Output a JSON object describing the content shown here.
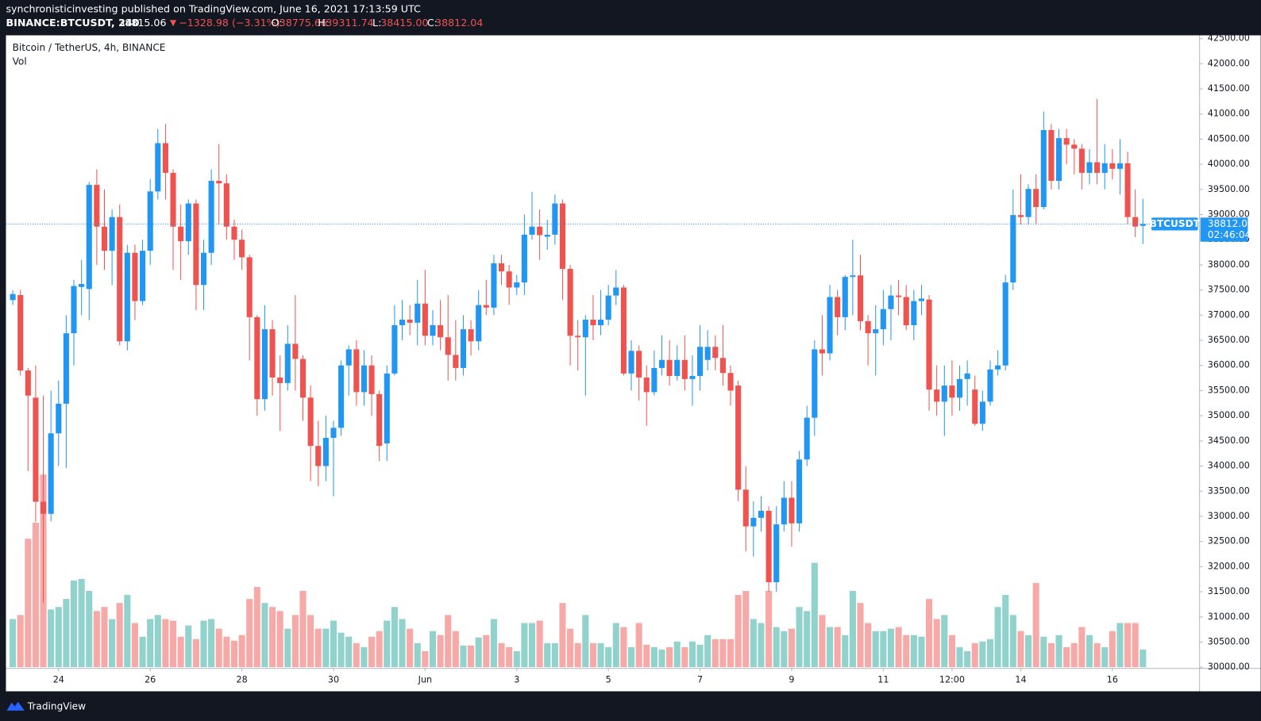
{
  "header": {
    "publisher": "synchronisticinvesting published on TradingView.com, June 16, 2021 17:13:59 UTC",
    "symbol": "BINANCE:BTCUSDT, 240",
    "price": "38815.06",
    "change": "−1328.98 (−3.31%)",
    "ohlc": [
      {
        "label": "O:",
        "value": "38775.66"
      },
      {
        "label": "H:",
        "value": "39311.74"
      },
      {
        "label": "L:",
        "value": "38415.00"
      },
      {
        "label": "C:",
        "value": "38812.04"
      }
    ]
  },
  "footer": {
    "brand": "TradingView"
  },
  "chart_data": {
    "type": "candlestick",
    "title": "Bitcoin / TetherUS, 4h, BINANCE",
    "volume_label": "Vol",
    "symbol_tag": "BTCUSDT",
    "countdown": "02:46:04",
    "up_color": "#2196f3",
    "down_color": "#ef5350",
    "up_volume_color": "#92d2cc",
    "down_volume_color": "#f7a9a7",
    "grid": false,
    "categories": [
      null,
      null,
      null,
      null,
      null,
      null,
      "24",
      null,
      null,
      null,
      null,
      null,
      null,
      null,
      null,
      null,
      null,
      null,
      "26",
      null,
      null,
      null,
      null,
      null,
      null,
      null,
      null,
      null,
      null,
      null,
      "28",
      null,
      null,
      null,
      null,
      null,
      null,
      null,
      null,
      null,
      null,
      null,
      "30",
      null,
      null,
      null,
      null,
      null,
      null,
      null,
      null,
      null,
      null,
      null,
      "Jun",
      null,
      null,
      null,
      null,
      null,
      null,
      null,
      null,
      null,
      null,
      null,
      "3",
      null,
      null,
      null,
      null,
      null,
      null,
      null,
      null,
      null,
      null,
      null,
      "5",
      null,
      null,
      null,
      null,
      null,
      null,
      null,
      null,
      null,
      null,
      null,
      "7",
      null,
      null,
      null,
      null,
      null,
      null,
      null,
      null,
      null,
      null,
      null,
      "9",
      null,
      null,
      null,
      null,
      null,
      null,
      null,
      null,
      null,
      null,
      null,
      "11",
      null,
      null,
      null,
      null,
      null,
      null,
      null,
      null,
      "12:00",
      null,
      null,
      null,
      null,
      null,
      null,
      null,
      null,
      "14",
      null,
      null,
      null,
      null,
      null,
      null,
      null,
      null,
      null,
      null,
      null,
      "16",
      null,
      null,
      null,
      null
    ],
    "open": [
      37300,
      37400,
      35900,
      35360,
      33290,
      33050,
      34650,
      35240,
      36640,
      37560,
      37520,
      39590,
      38760,
      38280,
      38950,
      36480,
      38240,
      37280,
      38280,
      39460,
      40420,
      39830,
      38760,
      38470,
      39220,
      37600,
      38240,
      39670,
      39620,
      38760,
      38500,
      38150,
      36960,
      35330,
      36720,
      35760,
      35650,
      36430,
      36130,
      35360,
      34400,
      34000,
      34560,
      34760,
      36000,
      36320,
      35470,
      36000,
      35430,
      34450,
      35840,
      36800,
      36910,
      36850,
      37230,
      36590,
      36800,
      36560,
      36210,
      35950,
      36720,
      36480,
      37200,
      37150,
      38030,
      37870,
      37550,
      37650,
      38600,
      38760,
      38560,
      38600,
      39220,
      37920,
      36590,
      36560,
      36910,
      36800,
      36910,
      37390,
      37550,
      35840,
      36290,
      35760,
      35470,
      35950,
      36110,
      35790,
      36110,
      35730,
      35790,
      36110,
      36370,
      36150,
      35850,
      35600,
      33530,
      32800,
      32970,
      33110,
      31690,
      32840,
      33370,
      32860,
      34130,
      34960,
      36320,
      36240,
      37360,
      36960,
      37760,
      37790,
      36880,
      36640,
      36720,
      37120,
      37390,
      37360,
      36800,
      37280,
      37310,
      35520,
      35280,
      35600,
      35360,
      35730,
      35520,
      34840,
      35280,
      35920,
      36000,
      37650,
      38990,
      38950,
      39510,
      39150,
      40680,
      39670,
      40520,
      40390,
      40310,
      39830,
      40040,
      39830,
      40020,
      39910,
      40020,
      38950,
      38775.66
    ],
    "high": [
      37500,
      37500,
      35950,
      36000,
      35400,
      35500,
      35700,
      37000,
      37700,
      38100,
      39650,
      39900,
      39500,
      39100,
      39200,
      38400,
      38400,
      38500,
      39700,
      40700,
      40800,
      39900,
      39200,
      39300,
      39300,
      38500,
      39900,
      40400,
      39800,
      38900,
      38700,
      38200,
      37000,
      37200,
      36900,
      36200,
      36800,
      37400,
      36200,
      35600,
      34900,
      35000,
      34900,
      36100,
      36400,
      36500,
      36300,
      36200,
      35500,
      36000,
      37200,
      37300,
      37200,
      37700,
      37900,
      37100,
      37300,
      37400,
      36900,
      37000,
      36900,
      37500,
      37700,
      38200,
      38200,
      38000,
      37800,
      39000,
      39450,
      39100,
      38900,
      39400,
      39300,
      38000,
      36900,
      37000,
      37400,
      37500,
      37600,
      37900,
      37600,
      36500,
      36400,
      36000,
      36300,
      36600,
      36500,
      36400,
      36600,
      36200,
      36800,
      36700,
      36600,
      36800,
      36000,
      35700,
      34000,
      33300,
      33400,
      33200,
      33200,
      33700,
      33700,
      34300,
      35200,
      36500,
      37000,
      37600,
      37500,
      37800,
      38500,
      38200,
      37000,
      37200,
      37500,
      37600,
      37700,
      37600,
      37500,
      37600,
      37400,
      36000,
      36000,
      36100,
      36000,
      36100,
      35800,
      35500,
      36100,
      36300,
      37800,
      39500,
      39800,
      39600,
      39800,
      41050,
      40800,
      40700,
      40700,
      40500,
      40400,
      40300,
      41300,
      40400,
      40300,
      40500,
      40250,
      39500,
      39311.74
    ],
    "low": [
      37200,
      35800,
      33900,
      32890,
      31290,
      32900,
      34000,
      33960,
      36000,
      37000,
      36900,
      38000,
      37900,
      37600,
      36400,
      36300,
      36900,
      37200,
      38000,
      39300,
      39300,
      37900,
      37700,
      38200,
      37100,
      37100,
      38000,
      38800,
      38500,
      38100,
      37900,
      36100,
      35000,
      35100,
      35400,
      34700,
      35500,
      35500,
      34900,
      33700,
      33600,
      33700,
      33400,
      34600,
      35400,
      35200,
      35200,
      35000,
      34100,
      34100,
      35800,
      36500,
      36600,
      36400,
      36400,
      36400,
      36300,
      35700,
      35700,
      35800,
      36200,
      36300,
      37000,
      37000,
      37600,
      37200,
      37400,
      37400,
      38500,
      38100,
      38300,
      38400,
      37300,
      36000,
      35900,
      35400,
      36500,
      36600,
      36800,
      37200,
      35800,
      35500,
      35300,
      34800,
      35400,
      35800,
      35600,
      35700,
      35500,
      35200,
      35500,
      35900,
      35900,
      35600,
      35200,
      33300,
      32300,
      32200,
      32700,
      31500,
      31500,
      32700,
      32400,
      32700,
      34000,
      34600,
      35800,
      36100,
      36600,
      36700,
      37000,
      36700,
      36000,
      35800,
      36400,
      36500,
      37000,
      36700,
      36500,
      37000,
      35100,
      35000,
      34600,
      35000,
      35100,
      35200,
      34800,
      34700,
      35200,
      35800,
      35900,
      37500,
      38800,
      38800,
      38800,
      39100,
      39500,
      39500,
      40000,
      39800,
      39500,
      39600,
      39600,
      39500,
      39700,
      39400,
      38800,
      38550,
      38415
    ],
    "close": [
      37420,
      35900,
      35400,
      33290,
      33050,
      34650,
      35240,
      36640,
      37580,
      37620,
      39590,
      38760,
      38280,
      38950,
      36480,
      38240,
      37280,
      38280,
      39460,
      40420,
      39830,
      38760,
      38470,
      39220,
      37600,
      38240,
      39670,
      39620,
      38760,
      38500,
      38150,
      36960,
      35330,
      36720,
      35760,
      35650,
      36430,
      36130,
      35360,
      34400,
      34000,
      34560,
      34760,
      36000,
      36320,
      35470,
      36000,
      35430,
      34400,
      35840,
      36800,
      36910,
      36850,
      37230,
      36590,
      36800,
      36560,
      36210,
      35950,
      36720,
      36480,
      37200,
      37150,
      38030,
      37870,
      37550,
      37650,
      38600,
      38760,
      38590,
      38600,
      39220,
      37920,
      36590,
      36560,
      36910,
      36800,
      36910,
      37390,
      37550,
      35840,
      36290,
      35760,
      35470,
      35950,
      36110,
      35790,
      36110,
      35730,
      35790,
      36370,
      36370,
      36150,
      35850,
      35500,
      33530,
      32800,
      32970,
      33110,
      31690,
      32840,
      33370,
      32860,
      34130,
      34960,
      36320,
      36240,
      37360,
      36960,
      37760,
      37790,
      36880,
      36640,
      36720,
      37120,
      37390,
      37360,
      36800,
      37280,
      37330,
      35520,
      35280,
      35600,
      35360,
      35730,
      35840,
      34840,
      35280,
      35920,
      36000,
      37650,
      38990,
      38950,
      39510,
      39150,
      40680,
      39670,
      40520,
      40390,
      40310,
      39830,
      40040,
      39830,
      40020,
      39910,
      40020,
      38950,
      38760,
      38812.04
    ],
    "volume": [
      60,
      65,
      160,
      180,
      240,
      72,
      75,
      85,
      108,
      110,
      95,
      70,
      75,
      60,
      80,
      90,
      55,
      38,
      60,
      65,
      60,
      58,
      38,
      52,
      35,
      58,
      60,
      48,
      38,
      33,
      40,
      85,
      100,
      80,
      75,
      70,
      48,
      65,
      95,
      65,
      48,
      48,
      58,
      43,
      38,
      30,
      25,
      38,
      45,
      58,
      75,
      60,
      48,
      30,
      20,
      45,
      40,
      65,
      45,
      27,
      27,
      37,
      40,
      60,
      30,
      25,
      20,
      55,
      55,
      58,
      30,
      30,
      80,
      48,
      30,
      65,
      30,
      30,
      25,
      55,
      50,
      25,
      55,
      28,
      25,
      22,
      25,
      32,
      25,
      32,
      28,
      40,
      35,
      35,
      35,
      90,
      95,
      60,
      55,
      95,
      50,
      45,
      48,
      75,
      70,
      130,
      65,
      50,
      50,
      40,
      95,
      80,
      55,
      45,
      45,
      48,
      50,
      40,
      40,
      38,
      85,
      60,
      65,
      40,
      25,
      20,
      30,
      32,
      35,
      75,
      90,
      65,
      45,
      40,
      105,
      38,
      30,
      40,
      25,
      30,
      50,
      40,
      30,
      25,
      45,
      55,
      55,
      55,
      22
    ],
    "ylim": [
      30000,
      42500
    ],
    "yticks": [
      {
        "value": 30000,
        "label": "30000.00"
      },
      {
        "value": 30500,
        "label": "30500.00"
      },
      {
        "value": 31000,
        "label": "31000.00"
      },
      {
        "value": 31500,
        "label": "31500.00"
      },
      {
        "value": 32000,
        "label": "32000.00"
      },
      {
        "value": 32500,
        "label": "32500.00"
      },
      {
        "value": 33000,
        "label": "33000.00"
      },
      {
        "value": 33500,
        "label": "33500.00"
      },
      {
        "value": 34000,
        "label": "34000.00"
      },
      {
        "value": 34500,
        "label": "34500.00"
      },
      {
        "value": 35000,
        "label": "35000.00"
      },
      {
        "value": 35500,
        "label": "35500.00"
      },
      {
        "value": 36000,
        "label": "36000.00"
      },
      {
        "value": 36500,
        "label": "36500.00"
      },
      {
        "value": 37000,
        "label": "37000.00"
      },
      {
        "value": 37500,
        "label": "37500.00"
      },
      {
        "value": 38000,
        "label": "38000.00"
      },
      {
        "value": 38500,
        "label": "38500.00"
      },
      {
        "value": 39000,
        "label": "39000.00"
      },
      {
        "value": 39500,
        "label": "39500.00"
      },
      {
        "value": 40000,
        "label": "40000.00"
      },
      {
        "value": 40500,
        "label": "40500.00"
      },
      {
        "value": 41000,
        "label": "41000.00"
      },
      {
        "value": 41500,
        "label": "41500.00"
      },
      {
        "value": 42000,
        "label": "42000.00"
      },
      {
        "value": 42500,
        "label": "42500.00"
      }
    ]
  }
}
